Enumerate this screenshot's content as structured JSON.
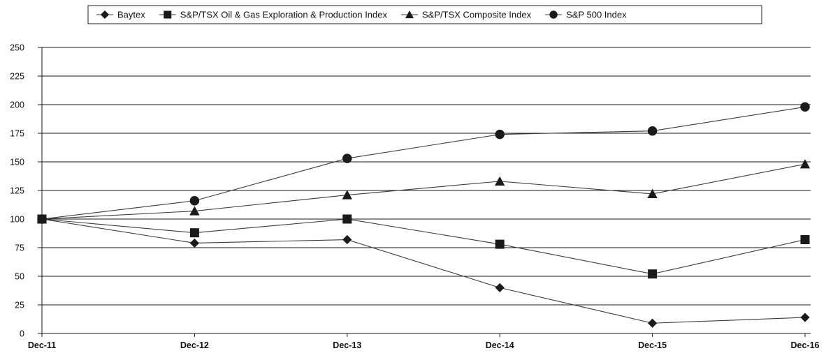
{
  "chart_data": {
    "type": "line",
    "categories": [
      "Dec-11",
      "Dec-12",
      "Dec-13",
      "Dec-14",
      "Dec-15",
      "Dec-16"
    ],
    "yticks": [
      "0",
      "25",
      "50",
      "75",
      "100",
      "125",
      "150",
      "175",
      "200",
      "225",
      "250"
    ],
    "ylim": [
      0,
      250
    ],
    "grid": true,
    "legend_position": "top-center",
    "series": [
      {
        "name": "Baytex",
        "marker": "diamond",
        "values": [
          100,
          79,
          82,
          40,
          9,
          14
        ]
      },
      {
        "name": "S&P/TSX Oil & Gas Exploration & Production Index",
        "marker": "square",
        "values": [
          100,
          88,
          100,
          78,
          52,
          82
        ]
      },
      {
        "name": "S&P/TSX Composite Index",
        "marker": "triangle",
        "values": [
          100,
          107,
          121,
          133,
          122,
          148
        ]
      },
      {
        "name": "S&P 500 Index",
        "marker": "circle",
        "values": [
          100,
          116,
          153,
          174,
          177,
          198
        ]
      }
    ],
    "colors": {
      "line": "#3a3a3a",
      "marker": "#1a1a1a",
      "grid": "#1a1a1a"
    }
  }
}
